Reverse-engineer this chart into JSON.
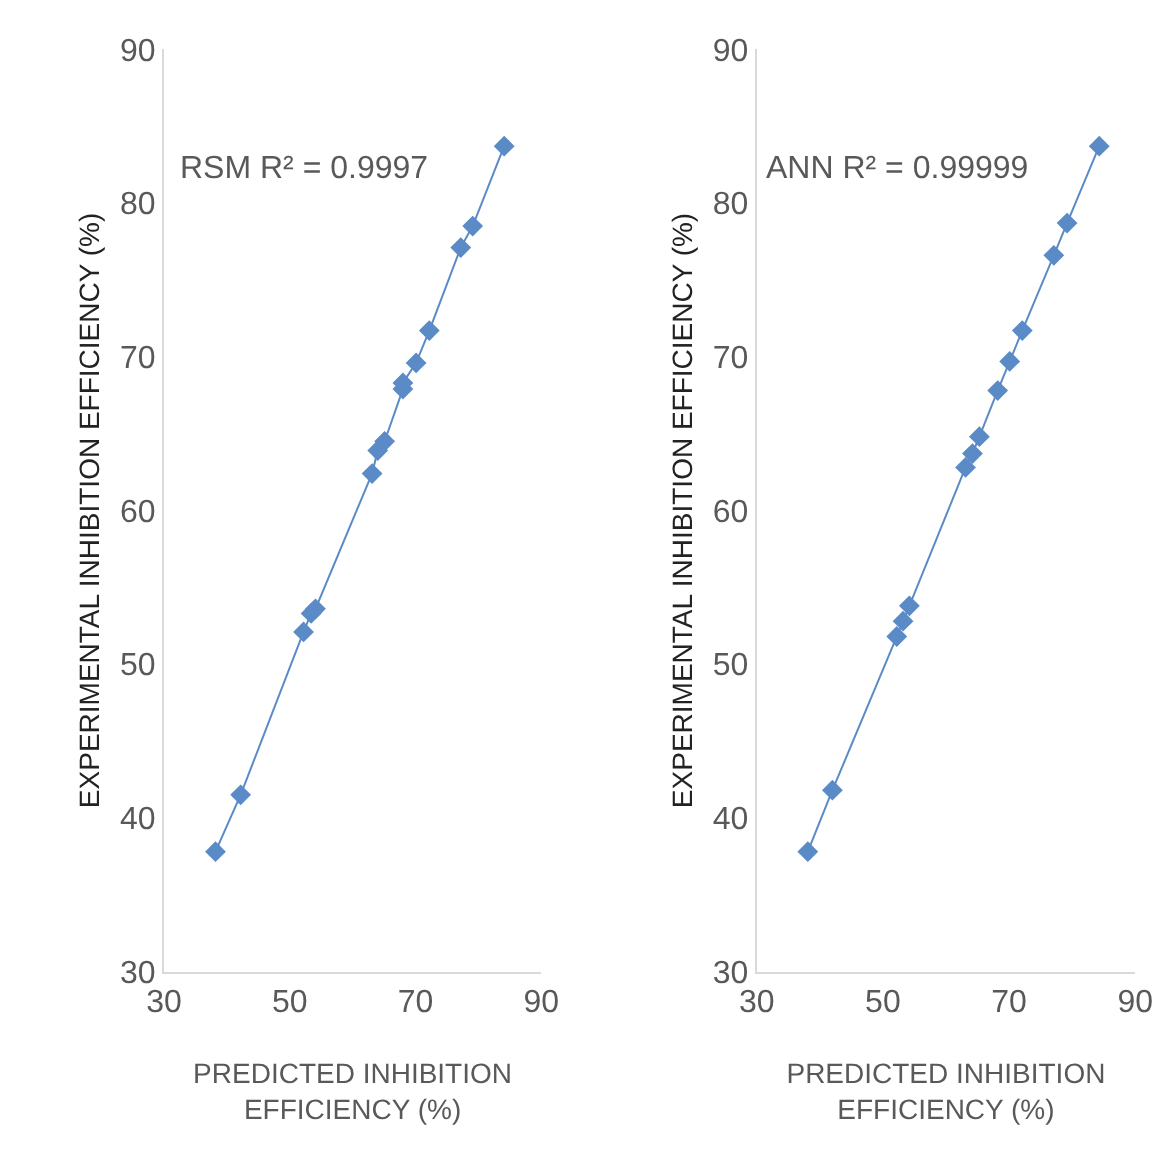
{
  "chart_data": [
    {
      "type": "line",
      "xlabel": "PREDICTED INHIBITION EFFICIENCY (%)",
      "ylabel": "EXPERIMENTAL INHIBITION EFFICIENCY (%)",
      "annotations": [
        "RSM R² = 0.9997"
      ],
      "x": [
        38.2,
        42.2,
        52.2,
        53.4,
        54.1,
        63.1,
        64.0,
        65.1,
        68.0,
        68.0,
        70.1,
        72.2,
        77.2,
        79.1,
        84.1
      ],
      "series": [
        {
          "color": "#5b8bc6",
          "values": [
            37.8,
            41.5,
            52.1,
            53.3,
            53.6,
            62.4,
            63.9,
            64.5,
            67.9,
            68.3,
            69.6,
            71.7,
            77.1,
            78.5,
            83.7
          ]
        }
      ],
      "xlim": [
        30,
        90
      ],
      "xticks": [
        30,
        50,
        70,
        90
      ],
      "ylim": [
        30,
        90
      ],
      "yticks": [
        30,
        40,
        50,
        60,
        70,
        80,
        90
      ],
      "grid": false,
      "marker": "diamond",
      "line_style": "solid"
    },
    {
      "type": "line",
      "xlabel": "PREDICTED INHIBITION EFFICIENCY (%)",
      "ylabel": "EXPERIMENTAL INHIBITION EFFICIENCY (%)",
      "annotations": [
        "ANN R² = 0.99999"
      ],
      "x": [
        38.1,
        42.0,
        52.2,
        53.2,
        54.2,
        63.1,
        64.2,
        65.3,
        68.2,
        70.1,
        72.1,
        77.1,
        79.2,
        84.3
      ],
      "series": [
        {
          "color": "#5b8bc6",
          "values": [
            37.8,
            41.8,
            51.8,
            52.8,
            53.8,
            62.8,
            63.7,
            64.8,
            67.8,
            69.7,
            71.7,
            76.6,
            78.7,
            83.7
          ]
        }
      ],
      "xlim": [
        30,
        90
      ],
      "xticks": [
        30,
        50,
        70,
        90
      ],
      "ylim": [
        30,
        90
      ],
      "yticks": [
        30,
        40,
        50,
        60,
        70,
        80,
        90
      ],
      "grid": false,
      "marker": "diamond",
      "line_style": "solid"
    }
  ]
}
